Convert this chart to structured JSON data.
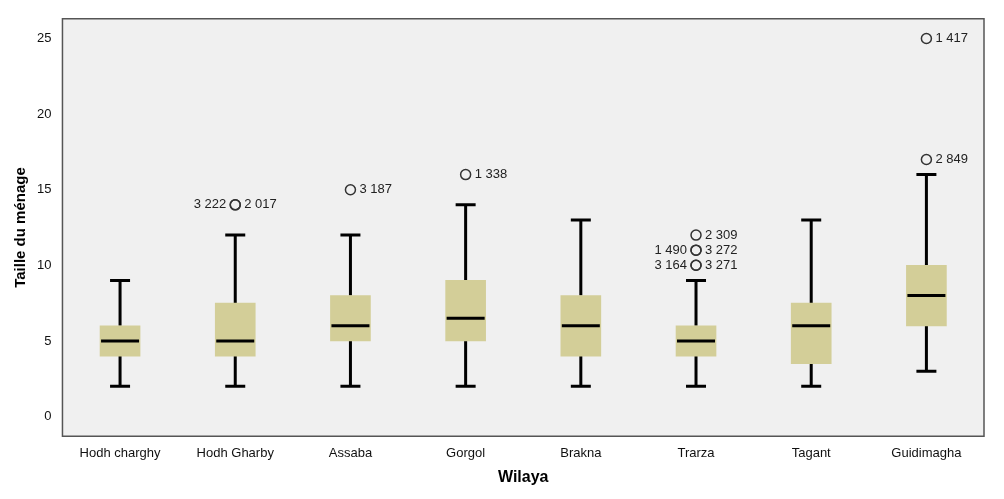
{
  "chart_data": {
    "type": "box",
    "xlabel": "Wilaya",
    "ylabel": "Taille du ménage",
    "categories": [
      "Hodh charghy",
      "Hodh Gharby",
      "Assaba",
      "Gorgol",
      "Brakna",
      "Trarza",
      "Tagant",
      "Guidimagha"
    ],
    "color": "#d3ce98",
    "boxes": [
      {
        "low": 2,
        "q1": 4,
        "median": 5,
        "q3": 6,
        "high": 9
      },
      {
        "low": 2,
        "q1": 4,
        "median": 5,
        "q3": 7.5,
        "high": 12,
        "outliers": [
          14,
          14
        ]
      },
      {
        "low": 2,
        "q1": 5,
        "median": 6,
        "q3": 8,
        "high": 12,
        "outliers": [
          15
        ]
      },
      {
        "low": 2,
        "q1": 5,
        "median": 6.5,
        "q3": 9,
        "high": 14,
        "outliers": [
          16
        ]
      },
      {
        "low": 2,
        "q1": 4,
        "median": 6,
        "q3": 8,
        "high": 13
      },
      {
        "low": 2,
        "q1": 4,
        "median": 5,
        "q3": 6,
        "high": 9,
        "outliers": [
          12,
          11,
          11,
          10,
          10
        ]
      },
      {
        "low": 2,
        "q1": 3.5,
        "median": 6,
        "q3": 7.5,
        "high": 13
      },
      {
        "low": 3,
        "q1": 6,
        "median": 8,
        "q3": 10,
        "high": 16,
        "outliers": [
          17,
          25
        ]
      }
    ],
    "ylim": [
      -1.3,
      26.3
    ],
    "yticks": [
      0,
      5,
      10,
      15,
      20,
      25
    ],
    "grid": false,
    "legend": false,
    "marker": "circle",
    "annotations": [
      "2 017",
      "3 222",
      "3 187",
      "1 338",
      "2 309",
      "3 272",
      "1 490",
      "3 271",
      "3 164",
      "2 849",
      "1 417"
    ]
  }
}
